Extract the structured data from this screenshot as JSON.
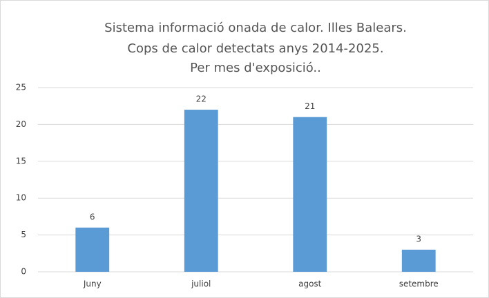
{
  "chart_data": {
    "type": "bar",
    "title": [
      "Sistema informació onada de calor. Illes Balears.",
      "Cops de calor detectats anys 2014-2025.",
      "Per mes d'exposició.."
    ],
    "categories": [
      "Juny",
      "juliol",
      "agost",
      "setembre"
    ],
    "values": [
      6,
      22,
      21,
      3
    ],
    "color": "#5b9bd5",
    "ylim": [
      0,
      25
    ],
    "yticks": [
      0,
      5,
      10,
      15,
      20,
      25
    ],
    "grid": true
  }
}
